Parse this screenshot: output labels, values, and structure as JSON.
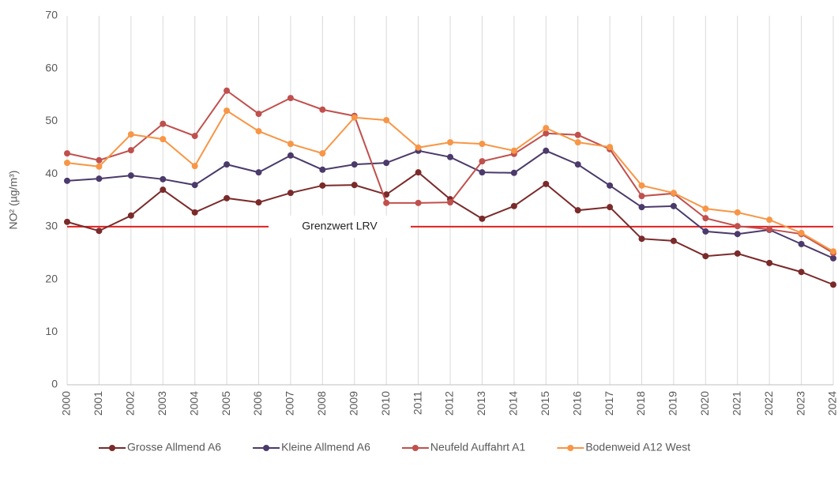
{
  "chart_data": {
    "type": "line",
    "y_label": "NO² (µg/m³)",
    "x": [
      2000,
      2001,
      2002,
      2003,
      2004,
      2005,
      2006,
      2007,
      2008,
      2009,
      2010,
      2011,
      2012,
      2013,
      2014,
      2015,
      2016,
      2017,
      2018,
      2019,
      2020,
      2021,
      2022,
      2023,
      2024
    ],
    "xlim": [
      2000,
      2024
    ],
    "xticks": [
      2000,
      2001,
      2002,
      2003,
      2004,
      2005,
      2006,
      2007,
      2008,
      2009,
      2010,
      2011,
      2012,
      2013,
      2014,
      2015,
      2016,
      2017,
      2018,
      2019,
      2020,
      2021,
      2022,
      2023,
      2024
    ],
    "ylim": [
      0,
      70
    ],
    "yticks": [
      0,
      10,
      20,
      30,
      40,
      50,
      60,
      70
    ],
    "grid": "x",
    "legend": "bottom",
    "series": [
      {
        "name": "Grosse Allmend A6",
        "color": "#7b2a2a",
        "values": [
          30.9,
          29.2,
          32.1,
          37.0,
          32.7,
          35.4,
          34.6,
          36.4,
          37.8,
          37.9,
          36.1,
          40.3,
          35.2,
          31.5,
          33.9,
          38.1,
          33.1,
          33.7,
          27.7,
          27.3,
          24.4,
          24.9,
          23.1,
          21.4,
          19.0
        ]
      },
      {
        "name": "Kleine Allmend A6",
        "color": "#4b3a6b",
        "values": [
          38.7,
          39.1,
          39.7,
          39.0,
          37.9,
          41.8,
          40.3,
          43.5,
          40.8,
          41.8,
          42.1,
          44.4,
          43.2,
          40.3,
          40.2,
          44.4,
          41.8,
          37.8,
          33.7,
          33.9,
          29.1,
          28.6,
          29.4,
          26.7,
          24.0
        ]
      },
      {
        "name": "Neufeld Auffahrt A1",
        "color": "#c0504d",
        "values": [
          43.9,
          42.6,
          44.5,
          49.5,
          47.2,
          55.8,
          51.4,
          54.4,
          52.2,
          51.0,
          34.5,
          34.5,
          34.6,
          42.4,
          43.8,
          47.7,
          47.4,
          44.7,
          35.8,
          36.3,
          31.6,
          30.1,
          29.5,
          28.6,
          25.0
        ]
      },
      {
        "name": "Bodenweid A12 West",
        "color": "#f79646",
        "values": [
          42.1,
          41.4,
          47.5,
          46.6,
          41.5,
          52.0,
          48.1,
          45.7,
          43.9,
          50.7,
          50.2,
          45.0,
          46.0,
          45.7,
          44.4,
          48.7,
          46.0,
          45.1,
          37.8,
          36.4,
          33.4,
          32.7,
          31.3,
          28.8,
          25.3
        ]
      }
    ],
    "annotations": [
      {
        "text": "Grenzwert LRV",
        "value": 30,
        "color": "#e02020"
      }
    ]
  }
}
